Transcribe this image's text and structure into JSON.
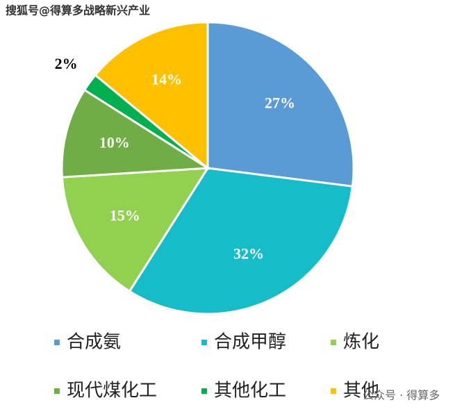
{
  "watermark_top": "搜狐号@得算多战略新兴产业",
  "watermark_bottom": "公众号 · 得算多",
  "chart_data": {
    "type": "pie",
    "categories": [
      "合成氨",
      "合成甲醇",
      "炼化",
      "现代煤化工",
      "其他化工",
      "其他"
    ],
    "values": [
      27,
      32,
      15,
      10,
      2,
      14
    ],
    "value_labels": [
      "27%",
      "32%",
      "15%",
      "10%",
      "2%",
      "14%"
    ],
    "colors": [
      "#5b9bd5",
      "#17bcc9",
      "#92d050",
      "#70ad47",
      "#00b050",
      "#ffc000"
    ],
    "legend": "bottom"
  }
}
